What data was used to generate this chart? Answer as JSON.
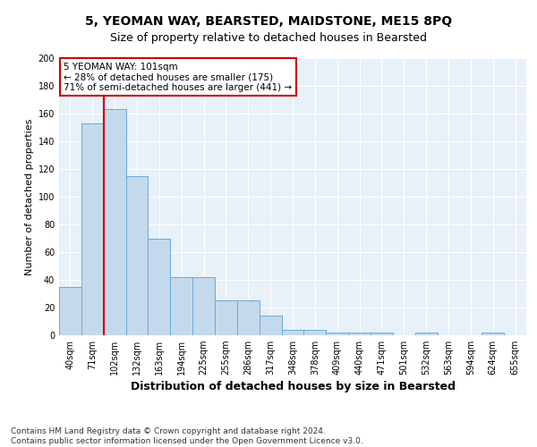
{
  "title1": "5, YEOMAN WAY, BEARSTED, MAIDSTONE, ME15 8PQ",
  "title2": "Size of property relative to detached houses in Bearsted",
  "xlabel": "Distribution of detached houses by size in Bearsted",
  "ylabel": "Number of detached properties",
  "categories": [
    "40sqm",
    "71sqm",
    "102sqm",
    "132sqm",
    "163sqm",
    "194sqm",
    "225sqm",
    "255sqm",
    "286sqm",
    "317sqm",
    "348sqm",
    "378sqm",
    "409sqm",
    "440sqm",
    "471sqm",
    "501sqm",
    "532sqm",
    "563sqm",
    "594sqm",
    "624sqm",
    "655sqm"
  ],
  "values": [
    35,
    153,
    163,
    115,
    70,
    42,
    42,
    25,
    25,
    14,
    4,
    4,
    2,
    2,
    2,
    0,
    2,
    0,
    0,
    2,
    0
  ],
  "bar_color": "#c5d9ec",
  "bar_edge_color": "#6aaad4",
  "vline_x_index": 2,
  "vline_color": "#cc0000",
  "annotation_text": "5 YEOMAN WAY: 101sqm\n← 28% of detached houses are smaller (175)\n71% of semi-detached houses are larger (441) →",
  "annotation_box_facecolor": "#ffffff",
  "annotation_box_edgecolor": "#cc0000",
  "ylim": [
    0,
    200
  ],
  "yticks": [
    0,
    20,
    40,
    60,
    80,
    100,
    120,
    140,
    160,
    180,
    200
  ],
  "footnote": "Contains HM Land Registry data © Crown copyright and database right 2024.\nContains public sector information licensed under the Open Government Licence v3.0.",
  "bg_color": "#e8f0f8",
  "title1_fontsize": 10,
  "title2_fontsize": 9,
  "xlabel_fontsize": 9,
  "ylabel_fontsize": 8,
  "tick_fontsize": 7,
  "footnote_fontsize": 6.5
}
